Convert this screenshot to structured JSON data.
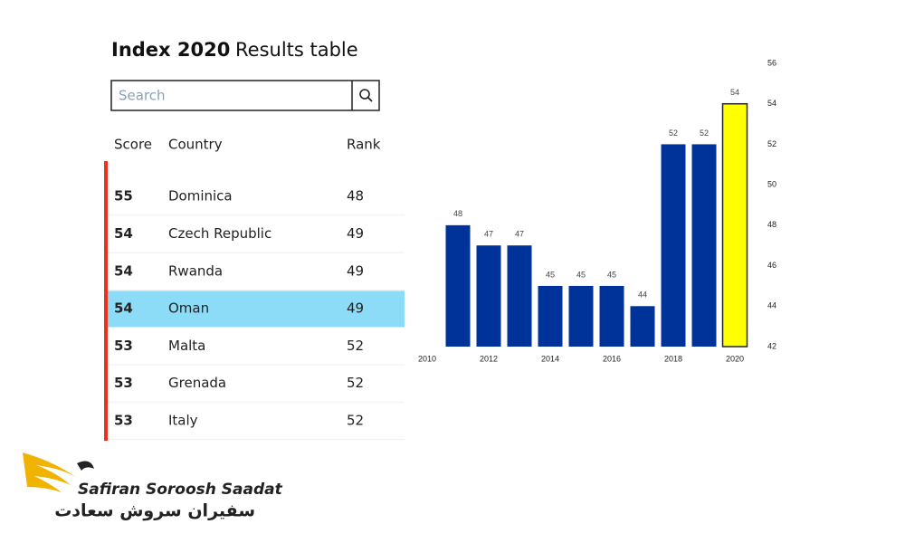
{
  "header": {
    "title": "Index 2020",
    "subtitle": "Results table"
  },
  "search": {
    "placeholder": "Search"
  },
  "table": {
    "columns": [
      "Score",
      "Country",
      "Rank"
    ],
    "rows": [
      [
        "55",
        "Dominica",
        "48"
      ],
      [
        "54",
        "Czech Republic",
        "49"
      ],
      [
        "54",
        "Rwanda",
        "49"
      ],
      [
        "54",
        "Oman",
        "49"
      ],
      [
        "53",
        "Malta",
        "52"
      ],
      [
        "53",
        "Grenada",
        "52"
      ],
      [
        "53",
        "Italy",
        "52"
      ]
    ],
    "highlight_row": 3
  },
  "chart_data": {
    "type": "bar",
    "categories": [
      "2010",
      null,
      "2012",
      null,
      "2014",
      null,
      "2016",
      null,
      "2018",
      null,
      "2020"
    ],
    "values": [
      null,
      48,
      47,
      47,
      45,
      45,
      45,
      44,
      52,
      52,
      54
    ],
    "colors": [
      null,
      "#003399",
      "#003399",
      "#003399",
      "#003399",
      "#003399",
      "#003399",
      "#003399",
      "#003399",
      "#003399",
      "#ffff00"
    ],
    "ylim": [
      42,
      56
    ],
    "yticks": [
      42,
      44,
      46,
      48,
      50,
      52,
      54,
      56
    ],
    "y_axis_side": "right"
  },
  "logo": {
    "name": "Safiran Soroosh Saadat",
    "name_fa": "سفیران سروش سعادت"
  }
}
